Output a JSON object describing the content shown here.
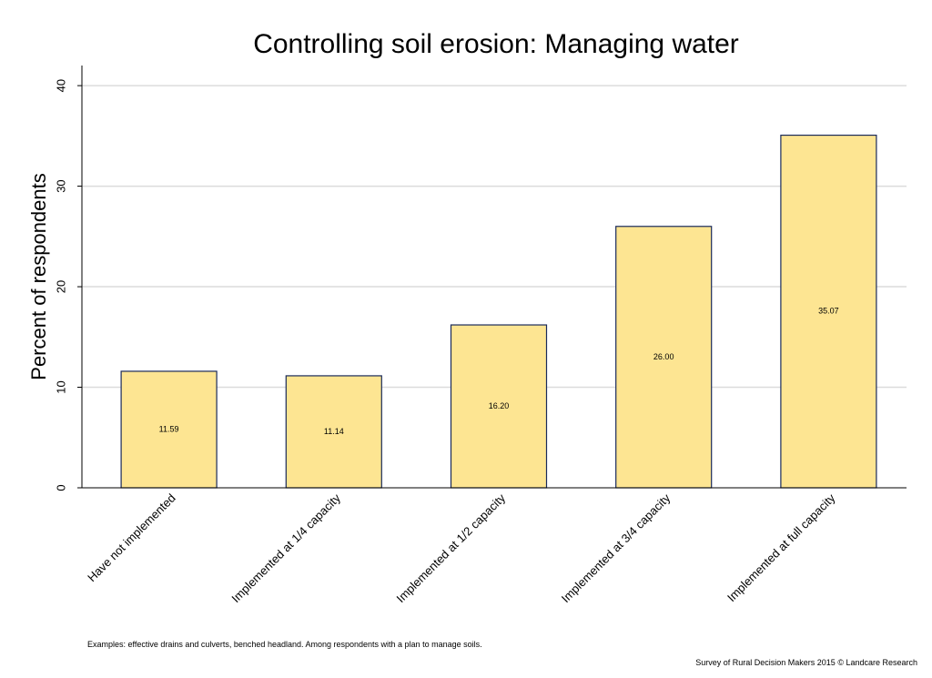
{
  "chart_data": {
    "type": "bar",
    "title": "Controlling soil erosion: Managing water",
    "ylabel": "Percent of respondents",
    "xlabel": "",
    "ylim": [
      0,
      42
    ],
    "yticks": [
      0,
      10,
      20,
      30,
      40
    ],
    "grid": true,
    "categories": [
      "Have not implemented",
      "Implemented at 1/4 capacity",
      "Implemented at 1/2 capacity",
      "Implemented at 3/4 capacity",
      "Implemented at full capacity"
    ],
    "values": [
      11.59,
      11.14,
      16.2,
      26.0,
      35.07
    ],
    "data_labels": [
      "11.59",
      "11.14",
      "16.20",
      "26.00",
      "35.07"
    ],
    "bar_color": "#fde592",
    "bar_edge_color": "#1a2a5a",
    "grid_color": "#dcdcdc"
  },
  "footnote": "Examples: effective drains and culverts, benched headland. Among respondents with a plan to manage soils.",
  "source": "Survey of Rural Decision Makers 2015 © Landcare Research"
}
